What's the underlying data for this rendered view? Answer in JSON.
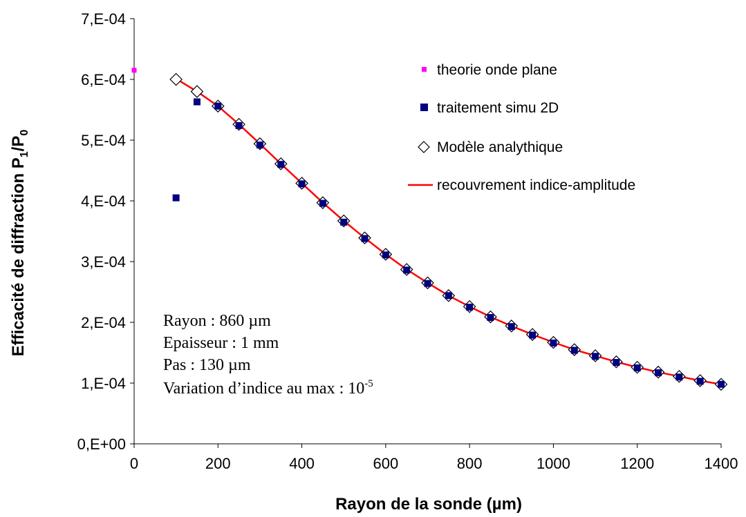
{
  "chart_data": {
    "type": "scatter",
    "xlabel": "Rayon de la sonde (µm)",
    "ylabel_main": "Efficacité de diffraction P",
    "ylabel_sub1": "1",
    "ylabel_mid": "/P",
    "ylabel_sub2": "0",
    "xlim": [
      0,
      1400
    ],
    "ylim": [
      0,
      0.0007
    ],
    "x_ticks": [
      0,
      200,
      400,
      600,
      800,
      1000,
      1200,
      1400
    ],
    "x_tick_labels": [
      "0",
      "200",
      "400",
      "600",
      "800",
      "1000",
      "1200",
      "1400"
    ],
    "y_ticks": [
      0,
      0.0001,
      0.0002,
      0.0003,
      0.0004,
      0.0005,
      0.0006,
      0.0007
    ],
    "y_tick_labels": [
      "0,E+00",
      "1,E-04",
      "2,E-04",
      "3,E-04",
      "4,E-04",
      "5,E-04",
      "6,E-04",
      "7,E-04"
    ],
    "grid": false,
    "legend_position": "top-right",
    "series": [
      {
        "name": "theorie onde plane",
        "marker": "small-square",
        "color": "#ff00ff",
        "points": [
          [
            0,
            0.000615
          ]
        ]
      },
      {
        "name": "traitement simu 2D",
        "marker": "square",
        "color": "#000080",
        "points": [
          [
            100,
            0.000405
          ],
          [
            150,
            0.000563
          ],
          [
            200,
            0.000556
          ],
          [
            250,
            0.000524
          ],
          [
            300,
            0.000492
          ],
          [
            350,
            0.00046
          ],
          [
            400,
            0.000428
          ],
          [
            450,
            0.000396
          ],
          [
            500,
            0.000365
          ],
          [
            550,
            0.000338
          ],
          [
            600,
            0.000311
          ],
          [
            650,
            0.000286
          ],
          [
            700,
            0.000264
          ],
          [
            750,
            0.000244
          ],
          [
            800,
            0.000225
          ],
          [
            850,
            0.000208
          ],
          [
            900,
            0.000193
          ],
          [
            950,
            0.000179
          ],
          [
            1000,
            0.000166
          ],
          [
            1050,
            0.000154
          ],
          [
            1100,
            0.000144
          ],
          [
            1150,
            0.000134
          ],
          [
            1200,
            0.000125
          ],
          [
            1250,
            0.000117
          ],
          [
            1300,
            0.00011
          ],
          [
            1350,
            0.000103
          ],
          [
            1400,
            9.8e-05
          ]
        ]
      },
      {
        "name": "Modèle analythique",
        "marker": "diamond-open",
        "color": "#000000",
        "points": [
          [
            100,
            0.0006
          ],
          [
            150,
            0.00058
          ],
          [
            200,
            0.000556
          ],
          [
            250,
            0.000526
          ],
          [
            300,
            0.000494
          ],
          [
            350,
            0.000461
          ],
          [
            400,
            0.000429
          ],
          [
            450,
            0.000397
          ],
          [
            500,
            0.000367
          ],
          [
            550,
            0.000339
          ],
          [
            600,
            0.000312
          ],
          [
            650,
            0.000287
          ],
          [
            700,
            0.000265
          ],
          [
            750,
            0.000244
          ],
          [
            800,
            0.000226
          ],
          [
            850,
            0.000209
          ],
          [
            900,
            0.000194
          ],
          [
            950,
            0.00018
          ],
          [
            1000,
            0.000167
          ],
          [
            1050,
            0.000155
          ],
          [
            1100,
            0.000145
          ],
          [
            1150,
            0.000135
          ],
          [
            1200,
            0.000126
          ],
          [
            1250,
            0.000118
          ],
          [
            1300,
            0.000111
          ],
          [
            1350,
            0.000104
          ],
          [
            1400,
            9.8e-05
          ]
        ]
      },
      {
        "name": "recouvrement indice-amplitude",
        "marker": "line",
        "color": "#ff0000",
        "points": [
          [
            100,
            0.000601
          ],
          [
            150,
            0.00058
          ],
          [
            200,
            0.000556
          ],
          [
            250,
            0.000526
          ],
          [
            300,
            0.000494
          ],
          [
            350,
            0.000461
          ],
          [
            400,
            0.000429
          ],
          [
            450,
            0.000397
          ],
          [
            500,
            0.000367
          ],
          [
            550,
            0.000339
          ],
          [
            600,
            0.000312
          ],
          [
            650,
            0.000287
          ],
          [
            700,
            0.000265
          ],
          [
            750,
            0.000244
          ],
          [
            800,
            0.000226
          ],
          [
            850,
            0.000209
          ],
          [
            900,
            0.000194
          ],
          [
            950,
            0.00018
          ],
          [
            1000,
            0.000167
          ],
          [
            1050,
            0.000155
          ],
          [
            1100,
            0.000145
          ],
          [
            1150,
            0.000135
          ],
          [
            1200,
            0.000126
          ],
          [
            1250,
            0.000118
          ],
          [
            1300,
            0.000111
          ],
          [
            1350,
            0.000104
          ],
          [
            1400,
            9.8e-05
          ],
          [
            1410,
            9.6e-05
          ]
        ]
      }
    ],
    "annotation": {
      "line1": "Rayon : 860 µm",
      "line2": "Epaisseur : 1 mm",
      "line3": "Pas : 130 µm",
      "line4_text": "Variation d’indice au max : 10",
      "line4_exp": "-5"
    }
  }
}
